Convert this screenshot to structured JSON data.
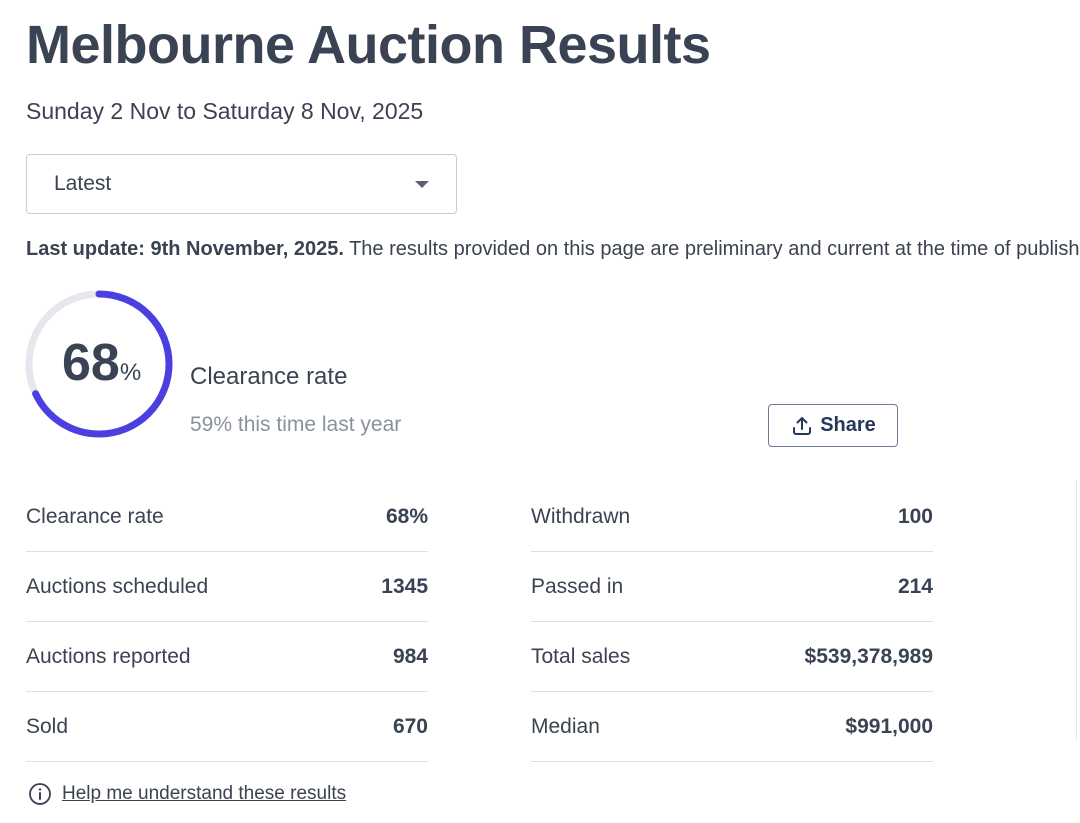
{
  "header": {
    "title": "Melbourne Auction Results",
    "date_range": "Sunday 2 Nov to Saturday 8 Nov, 2025"
  },
  "period_select": {
    "value": "Latest"
  },
  "update": {
    "bold": "Last update: 9th November, 2025.",
    "text": " The results provided on this page are preliminary and current at the time of publishing"
  },
  "summary": {
    "value": "68",
    "unit": "%",
    "percent": 68,
    "label": "Clearance rate",
    "last_year": "59% this time last year",
    "accent": "#4b3fe0"
  },
  "share_label": "Share",
  "stats_left": [
    {
      "label": "Clearance rate",
      "value": "68%"
    },
    {
      "label": "Auctions scheduled",
      "value": "1345"
    },
    {
      "label": "Auctions reported",
      "value": "984"
    },
    {
      "label": "Sold",
      "value": "670"
    }
  ],
  "stats_right": [
    {
      "label": "Withdrawn",
      "value": "100"
    },
    {
      "label": "Passed in",
      "value": "214"
    },
    {
      "label": "Total sales",
      "value": "$539,378,989"
    },
    {
      "label": "Median",
      "value": "$991,000"
    }
  ],
  "help_link": "Help me understand these results"
}
